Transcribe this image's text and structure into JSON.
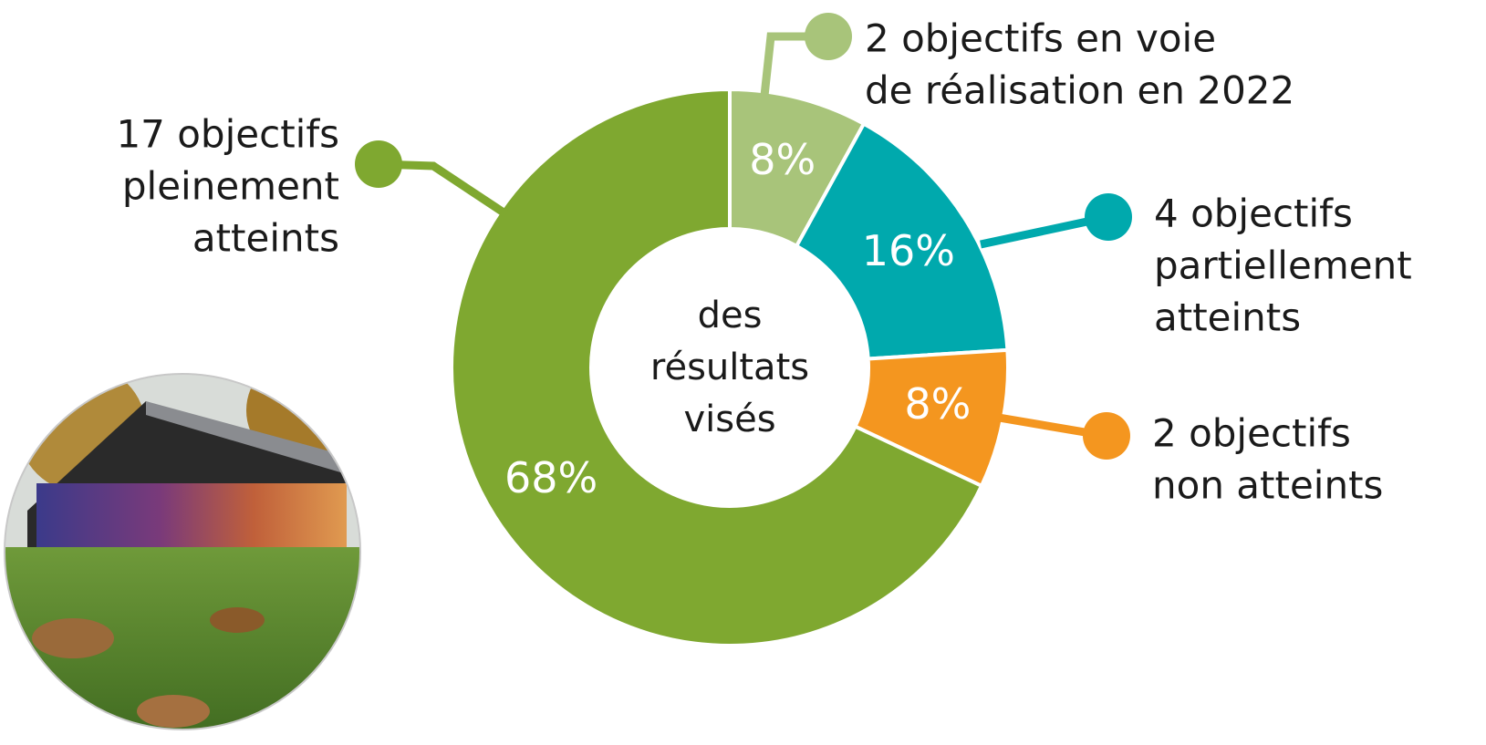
{
  "chart_data": {
    "type": "donut",
    "categories": [
      [
        "2 objectifs en voie",
        "de réalisation en 2022"
      ],
      [
        "4 objectifs",
        "partiellement",
        "atteints"
      ],
      [
        "2 objectifs",
        "non atteints"
      ],
      [
        "17 objectifs",
        "pleinement",
        "atteints"
      ]
    ],
    "values": [
      8,
      16,
      8,
      68
    ],
    "value_labels": [
      "8%",
      "16%",
      "8%",
      "68%"
    ],
    "colors": [
      "#a8c47a",
      "#00a9ad",
      "#f4961f",
      "#7fa830"
    ],
    "center_label": [
      "des",
      "résultats",
      "visés"
    ]
  }
}
